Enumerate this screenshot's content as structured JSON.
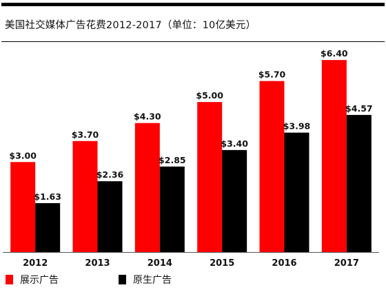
{
  "colors": {
    "series1": "#ff0000",
    "series2": "#000000"
  },
  "chart_data": {
    "type": "bar",
    "title": "美国社交媒体广告花费2012-2017（单位：10亿美元）",
    "categories": [
      "2012",
      "2013",
      "2014",
      "2015",
      "2016",
      "2017"
    ],
    "series": [
      {
        "name": "展示广告",
        "values": [
          3.0,
          3.7,
          4.3,
          5.0,
          5.7,
          6.4
        ],
        "labels": [
          "$3.00",
          "$3.70",
          "$4.30",
          "$5.00",
          "$5.70",
          "$6.40"
        ]
      },
      {
        "name": "原生广告",
        "values": [
          1.63,
          2.36,
          2.85,
          3.4,
          3.98,
          4.57
        ],
        "labels": [
          "$1.63",
          "$2.36",
          "$2.85",
          "$3.40",
          "$3.98",
          "$4.57"
        ]
      }
    ],
    "ylim": [
      0,
      7
    ],
    "grid": false,
    "legend_position": "bottom-left"
  }
}
